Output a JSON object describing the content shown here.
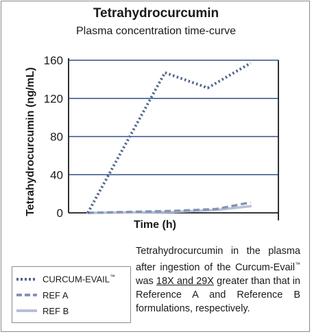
{
  "header": {
    "title": "Tetrahydrocurcumin",
    "subtitle": "Plasma concentration time-curve"
  },
  "colors": {
    "curcum": "#51678e",
    "ref_a": "#8494b4",
    "ref_b": "#b6c0d6",
    "grid": "#2f4f8a",
    "axis": "#1a1a1a"
  },
  "chart_data": {
    "type": "line",
    "title": "Tetrahydrocurcumin",
    "subtitle": "Plasma concentration time-curve",
    "xlabel": "Time (h)",
    "ylabel": "Tetrahydrocurcumin (ng/mL)",
    "ylim": [
      0,
      160
    ],
    "yticks": [
      "0",
      "40",
      "80",
      "120",
      "160"
    ],
    "x_ticks_shown": false,
    "grid": true,
    "legend_position": "bottom-left",
    "series": [
      {
        "name": "CURCUM-EVAIL™",
        "style": "dotted",
        "color": "#51678e",
        "points": [
          [
            0.0,
            0
          ],
          [
            0.45,
            147
          ],
          [
            0.7,
            131
          ],
          [
            0.95,
            157
          ]
        ]
      },
      {
        "name": "REF A",
        "style": "dashed",
        "color": "#8494b4",
        "points": [
          [
            0.0,
            0
          ],
          [
            0.5,
            2
          ],
          [
            0.75,
            4
          ],
          [
            0.95,
            11
          ]
        ]
      },
      {
        "name": "REF B",
        "style": "solid",
        "color": "#b6c0d6",
        "points": [
          [
            0.0,
            0
          ],
          [
            0.5,
            1
          ],
          [
            0.75,
            3
          ],
          [
            0.95,
            7
          ]
        ]
      }
    ]
  },
  "legend": {
    "items": [
      {
        "label": "CURCUM-EVAIL",
        "mark": "™"
      },
      {
        "label": "REF A",
        "mark": ""
      },
      {
        "label": "REF B",
        "mark": ""
      }
    ]
  },
  "note": {
    "part1": "Tetrahydrocurcumin in the plasma after ingestion of the Curcum-Evail",
    "tm": "™",
    "part2": " was ",
    "emphasis": "18X and 29X",
    "part3": " greater than that in Reference A and Reference B formulations, respectively."
  }
}
